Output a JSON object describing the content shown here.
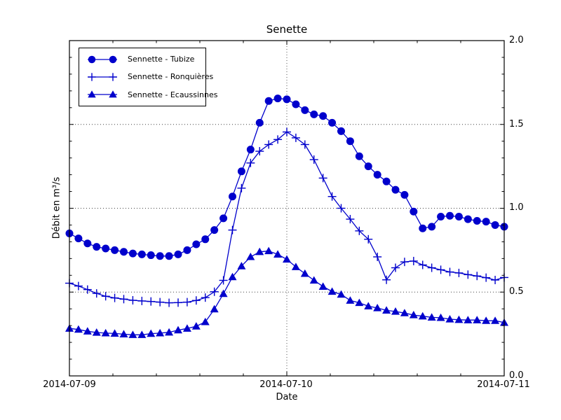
{
  "window": {
    "background": "#ffffff"
  },
  "chart_data": {
    "type": "line",
    "title": "Senette",
    "xlabel": "Date",
    "ylabel": "Débit en m³/s",
    "ylim": [
      0.0,
      2.0
    ],
    "xticklabels": [
      "2014-07-09",
      "2014-07-10",
      "2014-07-11"
    ],
    "yticklabels": [
      "0.0",
      "0.5",
      "1.0",
      "1.5",
      "2.0"
    ],
    "ytick_side": "right",
    "minor_ticks": {
      "x_per_day": 5,
      "y_step": 0.1
    },
    "grid": {
      "style": "dotted",
      "color": "#444444",
      "y_lines": [
        0.5,
        1.0,
        1.5
      ],
      "x_lines_at_label": "2014-07-10"
    },
    "legend_position": "upper-left",
    "x_unit": "hours since 2014-07-09 00:00 (hourly points, 0..48)",
    "series": [
      {
        "name": "Sennette - Tubize",
        "marker": "circle",
        "color": "#0000cc",
        "values": [
          0.85,
          0.82,
          0.79,
          0.77,
          0.76,
          0.75,
          0.74,
          0.73,
          0.725,
          0.72,
          0.715,
          0.715,
          0.725,
          0.75,
          0.785,
          0.815,
          0.87,
          0.94,
          1.07,
          1.22,
          1.35,
          1.51,
          1.64,
          1.655,
          1.65,
          1.62,
          1.585,
          1.56,
          1.55,
          1.51,
          1.46,
          1.4,
          1.31,
          1.25,
          1.2,
          1.16,
          1.11,
          1.08,
          0.98,
          0.88,
          0.89,
          0.95,
          0.955,
          0.95,
          0.935,
          0.925,
          0.92,
          0.9,
          0.89
        ]
      },
      {
        "name": "Sennette - Ronquières",
        "marker": "plus",
        "color": "#0000cc",
        "values": [
          0.553,
          0.536,
          0.515,
          0.492,
          0.475,
          0.465,
          0.458,
          0.451,
          0.447,
          0.444,
          0.44,
          0.436,
          0.437,
          0.44,
          0.45,
          0.467,
          0.502,
          0.57,
          0.87,
          1.12,
          1.27,
          1.34,
          1.38,
          1.41,
          1.455,
          1.42,
          1.38,
          1.29,
          1.18,
          1.07,
          1.0,
          0.935,
          0.865,
          0.815,
          0.71,
          0.573,
          0.645,
          0.68,
          0.685,
          0.662,
          0.645,
          0.633,
          0.62,
          0.614,
          0.604,
          0.596,
          0.586,
          0.572,
          0.587
        ]
      },
      {
        "name": "Sennette - Ecaussinnes",
        "marker": "triangle-up",
        "color": "#0000cc",
        "values": [
          0.283,
          0.277,
          0.266,
          0.259,
          0.255,
          0.253,
          0.249,
          0.245,
          0.245,
          0.252,
          0.255,
          0.26,
          0.273,
          0.283,
          0.296,
          0.322,
          0.398,
          0.49,
          0.59,
          0.655,
          0.71,
          0.74,
          0.745,
          0.725,
          0.695,
          0.65,
          0.61,
          0.57,
          0.533,
          0.503,
          0.486,
          0.45,
          0.436,
          0.416,
          0.405,
          0.391,
          0.384,
          0.375,
          0.363,
          0.356,
          0.349,
          0.347,
          0.338,
          0.335,
          0.333,
          0.333,
          0.329,
          0.329,
          0.318
        ]
      }
    ]
  }
}
